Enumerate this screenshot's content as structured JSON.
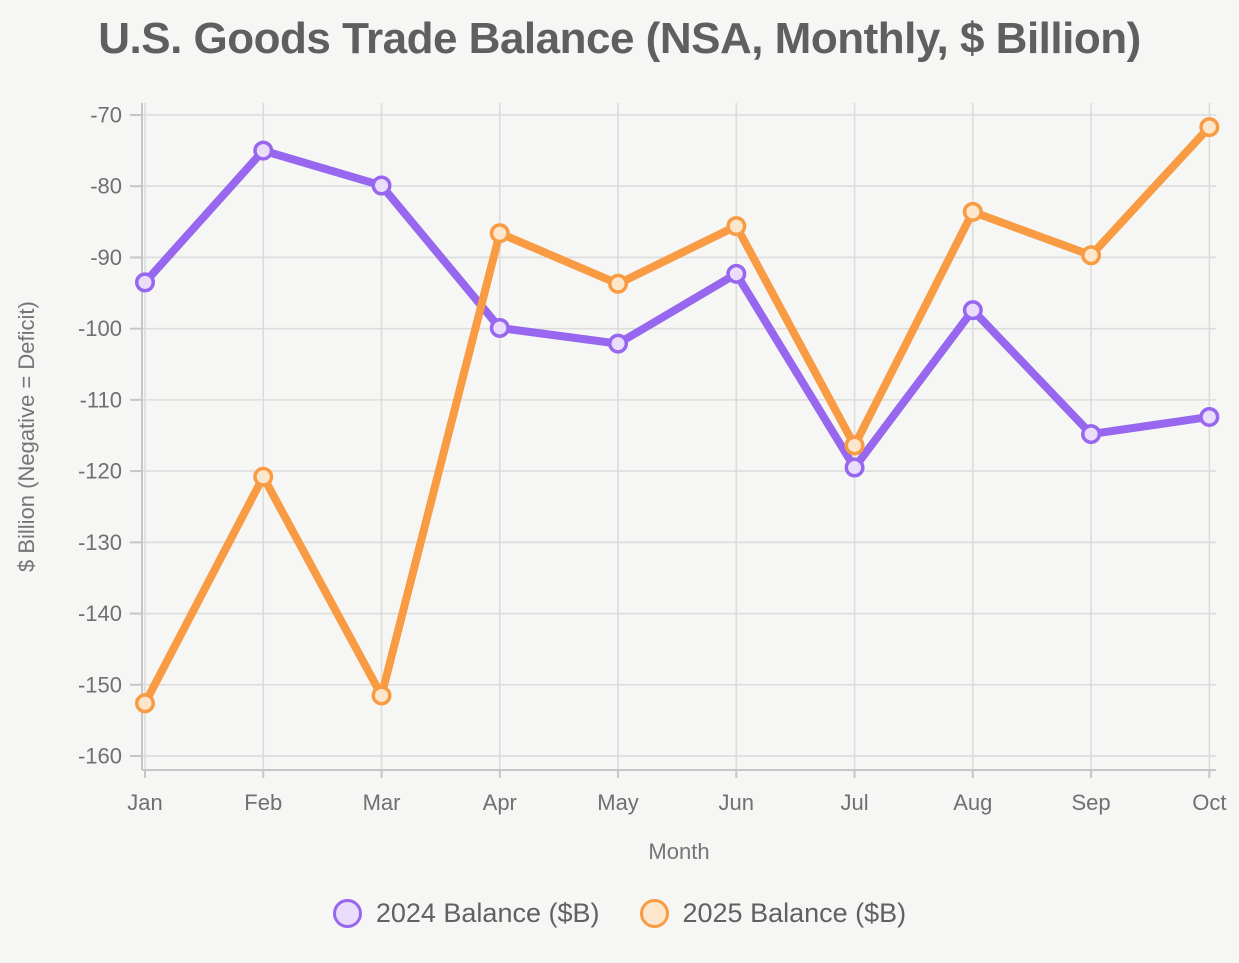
{
  "chart_data": {
    "type": "line",
    "title": "U.S. Goods Trade Balance (NSA, Monthly, $ Billion)",
    "xlabel": "Month",
    "ylabel": "$ Billion (Negative = Deficit)",
    "categories": [
      "Jan",
      "Feb",
      "Mar",
      "Apr",
      "May",
      "Jun",
      "Jul",
      "Aug",
      "Sep",
      "Oct"
    ],
    "series": [
      {
        "name": "2024 Balance ($B)",
        "color": "#9767EF",
        "marker_fill": "#EADCFB",
        "values": [
          -93.5,
          -75.0,
          -79.9,
          -99.9,
          -102.1,
          -92.3,
          -119.5,
          -97.4,
          -114.8,
          -112.4
        ]
      },
      {
        "name": "2025 Balance ($B)",
        "color": "#F89B43",
        "marker_fill": "#FCE7CC",
        "values": [
          -152.6,
          -120.8,
          -151.5,
          -86.6,
          -93.7,
          -85.6,
          -116.4,
          -83.6,
          -89.7,
          -71.7
        ]
      }
    ],
    "yticks": [
      -70,
      -80,
      -90,
      -100,
      -110,
      -120,
      -130,
      -140,
      -150,
      -160
    ],
    "ylim": [
      -162,
      -68
    ],
    "grid": true,
    "legend_position": "bottom"
  },
  "style_colors": {
    "background": "#F6F6F4",
    "gridline": "#DCDCDC",
    "axis_spine": "#C6C6C6",
    "tick_label": "#707070",
    "title_text": "#5F5F5F",
    "axis_title_text": "#757575",
    "legend_text": "#616161"
  }
}
